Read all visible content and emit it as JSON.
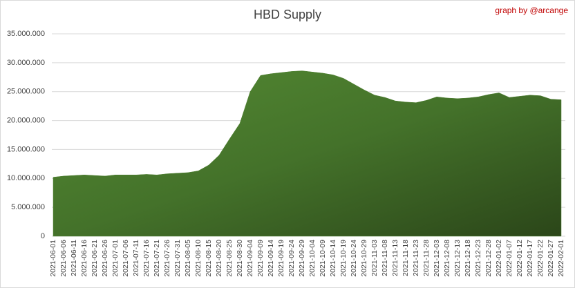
{
  "chart_data": {
    "type": "area",
    "title": "HBD Supply",
    "annotation": "graph by @arcange",
    "categories": [
      "2021-06-01",
      "2021-06-06",
      "2021-06-11",
      "2021-06-16",
      "2021-06-21",
      "2021-06-26",
      "2021-07-01",
      "2021-07-06",
      "2021-07-11",
      "2021-07-16",
      "2021-07-21",
      "2021-07-26",
      "2021-07-31",
      "2021-08-05",
      "2021-08-10",
      "2021-08-15",
      "2021-08-20",
      "2021-08-25",
      "2021-08-30",
      "2021-09-04",
      "2021-09-09",
      "2021-09-14",
      "2021-09-19",
      "2021-09-24",
      "2021-09-29",
      "2021-10-04",
      "2021-10-09",
      "2021-10-14",
      "2021-10-19",
      "2021-10-24",
      "2021-10-29",
      "2021-11-03",
      "2021-11-08",
      "2021-11-13",
      "2021-11-18",
      "2021-11-23",
      "2021-11-28",
      "2021-12-03",
      "2021-12-08",
      "2021-12-13",
      "2021-12-18",
      "2021-12-23",
      "2021-12-28",
      "2022-01-02",
      "2022-01-07",
      "2022-01-12",
      "2022-01-17",
      "2022-01-22",
      "2022-01-27",
      "2022-02-01"
    ],
    "values": [
      10200000,
      10400000,
      10500000,
      10600000,
      10500000,
      10400000,
      10600000,
      10600000,
      10600000,
      10700000,
      10600000,
      10800000,
      10900000,
      11000000,
      11300000,
      12300000,
      14000000,
      16800000,
      19500000,
      25000000,
      27800000,
      28100000,
      28300000,
      28500000,
      28600000,
      28400000,
      28200000,
      27900000,
      27300000,
      26300000,
      25300000,
      24400000,
      24000000,
      23400000,
      23200000,
      23100000,
      23500000,
      24100000,
      23900000,
      23800000,
      23900000,
      24100000,
      24500000,
      24800000,
      24000000,
      24200000,
      24400000,
      24300000,
      23700000,
      23600000
    ],
    "color": "#4e8030",
    "ylim": [
      0,
      35000000
    ],
    "yticks": [
      0,
      {
        "value": 5000000,
        "label": "5.000.000"
      },
      {
        "value": 10000000,
        "label": "10.000.000"
      },
      {
        "value": 15000000,
        "label": "15.000.000"
      },
      {
        "value": 20000000,
        "label": "20.000.000"
      },
      {
        "value": 25000000,
        "label": "25.000.000"
      },
      {
        "value": 30000000,
        "label": "30.000.000"
      },
      {
        "value": 35000000,
        "label": "35.000.000"
      }
    ],
    "grid": true
  }
}
